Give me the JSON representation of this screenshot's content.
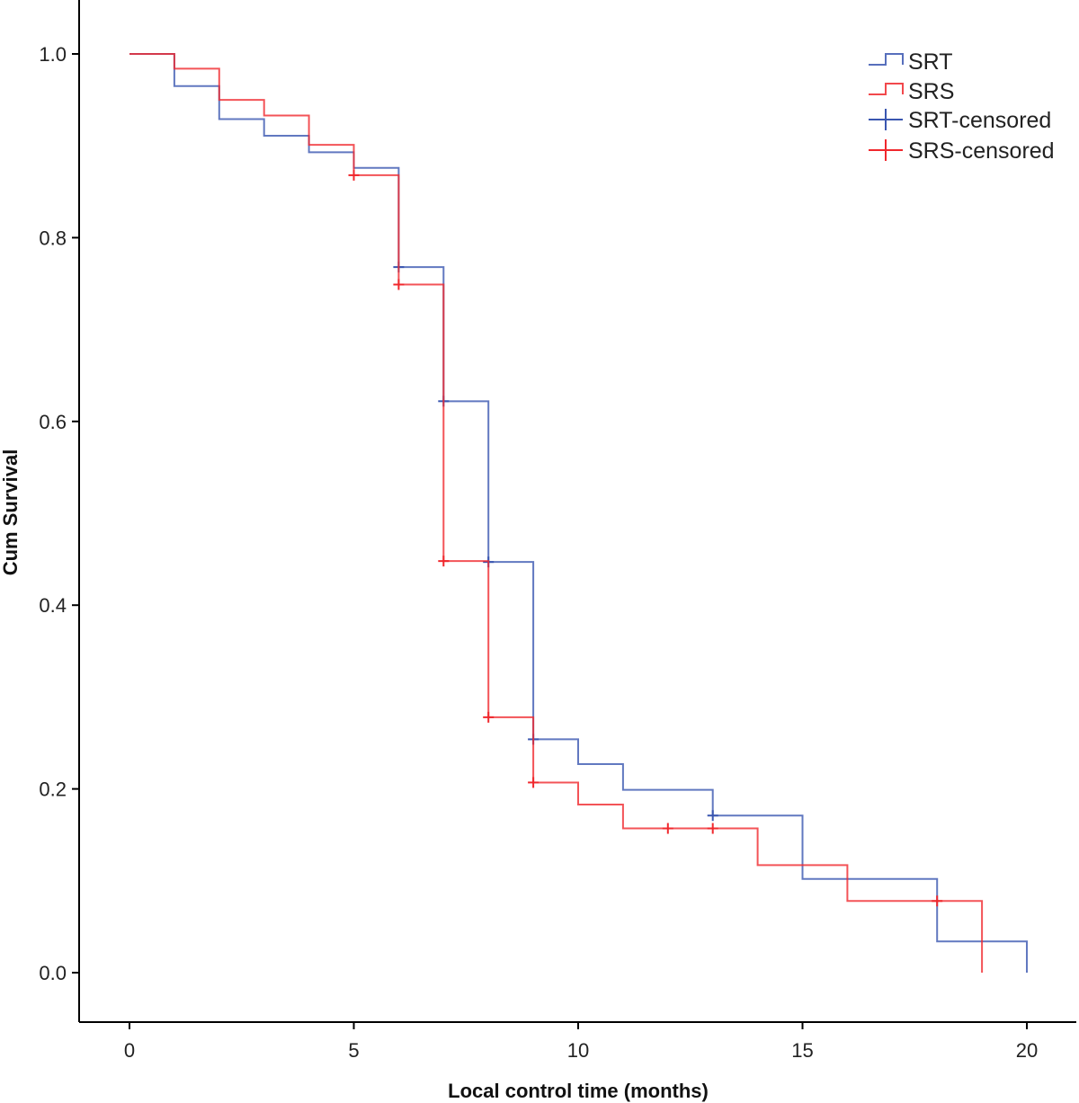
{
  "chart_data": {
    "type": "line",
    "subtype": "kaplan-meier step",
    "title": "",
    "xlabel": "Local control time (months)",
    "ylabel": "Cum Survival",
    "xlim": [
      0,
      20
    ],
    "ylim": [
      0,
      1
    ],
    "xticks": [
      "0",
      "5",
      "10",
      "15",
      "20"
    ],
    "xtick_values": [
      0,
      5,
      10,
      15,
      20
    ],
    "yticks": [
      "0.0",
      "0.2",
      "0.4",
      "0.6",
      "0.8",
      "1.0"
    ],
    "ytick_values": [
      0,
      0.2,
      0.4,
      0.6,
      0.8,
      1.0
    ],
    "grid": false,
    "legend_position": "top-right",
    "legend": [
      "SRT",
      "SRS",
      "SRT-censored",
      "SRS-censored"
    ],
    "series": [
      {
        "name": "SRT",
        "color": "#3a56b0",
        "x": [
          0,
          1,
          2,
          3,
          4,
          5,
          6,
          7,
          8,
          9,
          10,
          11,
          13,
          15,
          18,
          20
        ],
        "y": [
          1.0,
          0.965,
          0.929,
          0.911,
          0.893,
          0.876,
          0.768,
          0.622,
          0.447,
          0.254,
          0.227,
          0.199,
          0.171,
          0.102,
          0.034,
          0.0
        ],
        "censored_x": [
          6,
          7,
          8,
          9,
          13
        ],
        "censored_y": [
          0.768,
          0.622,
          0.447,
          0.254,
          0.171
        ]
      },
      {
        "name": "SRS",
        "color": "#f0282d",
        "x": [
          0,
          1,
          2,
          3,
          4,
          5,
          6,
          7,
          8,
          9,
          10,
          11,
          14,
          16,
          19
        ],
        "y": [
          1.0,
          0.984,
          0.95,
          0.933,
          0.901,
          0.868,
          0.749,
          0.448,
          0.278,
          0.207,
          0.183,
          0.157,
          0.117,
          0.078,
          0.0
        ],
        "censored_x": [
          5,
          6,
          7,
          8,
          9,
          12,
          13,
          18
        ],
        "censored_y": [
          0.868,
          0.749,
          0.448,
          0.278,
          0.207,
          0.157,
          0.157,
          0.078
        ]
      }
    ]
  }
}
